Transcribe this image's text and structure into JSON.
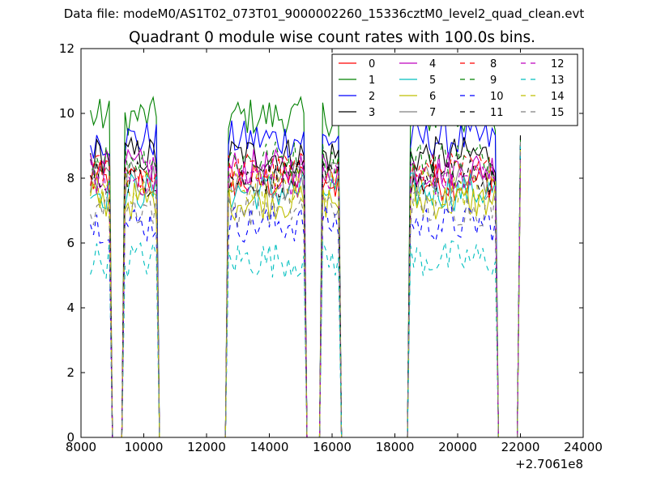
{
  "chart_data": {
    "type": "line",
    "suptitle": "Data file: modeM0/AS1T02_073T01_9000002260_15336cztM0_level2_quad_clean.evt",
    "title": "Quadrant 0 module wise count rates with 100.0s bins.",
    "xlabel": "",
    "ylabel": "",
    "x_offset_label": "+2.7061e8",
    "xlim": [
      8000,
      24000
    ],
    "ylim": [
      0,
      12
    ],
    "x_ticks": [
      "8000",
      "10000",
      "12000",
      "14000",
      "16000",
      "18000",
      "20000",
      "22000",
      "24000"
    ],
    "y_ticks": [
      "0",
      "2",
      "4",
      "6",
      "8",
      "10",
      "12"
    ],
    "grid": false,
    "legend_position": "top-right",
    "legend_columns": 4,
    "colors": [
      "#ff0000",
      "#008000",
      "#0000ff",
      "#000000",
      "#bf00bf",
      "#00bfbf",
      "#bfbf00",
      "#808080",
      "#ff0000",
      "#008000",
      "#0000ff",
      "#000000",
      "#bf00bf",
      "#00bfbf",
      "#bfbf00",
      "#808080"
    ],
    "series": [
      {
        "name": "0",
        "style": "solid",
        "level": 7.9
      },
      {
        "name": "1",
        "style": "solid",
        "level": 9.9
      },
      {
        "name": "2",
        "style": "solid",
        "level": 9.2
      },
      {
        "name": "3",
        "style": "solid",
        "level": 8.7
      },
      {
        "name": "4",
        "style": "solid",
        "level": 8.3
      },
      {
        "name": "5",
        "style": "solid",
        "level": 7.6
      },
      {
        "name": "6",
        "style": "solid",
        "level": 7.3
      },
      {
        "name": "7",
        "style": "solid",
        "level": 7.9
      },
      {
        "name": "8",
        "style": "dashed",
        "level": 8.2
      },
      {
        "name": "9",
        "style": "dashed",
        "level": 8.6
      },
      {
        "name": "10",
        "style": "dashed",
        "level": 6.6
      },
      {
        "name": "11",
        "style": "dashed",
        "level": 8.0
      },
      {
        "name": "12",
        "style": "dashed",
        "level": 8.0
      },
      {
        "name": "13",
        "style": "dashed",
        "level": 5.5
      },
      {
        "name": "14",
        "style": "dashed",
        "level": 7.7
      },
      {
        "name": "15",
        "style": "dashed",
        "level": 7.1
      }
    ],
    "bin_size_s": 100,
    "active_intervals": [
      [
        8300,
        8900
      ],
      [
        9400,
        10400
      ],
      [
        12700,
        15100
      ],
      [
        15650,
        16200
      ],
      [
        18450,
        21200
      ]
    ],
    "end_spike": {
      "x": 22000,
      "ymin": 8.2,
      "ymax": 9.4
    }
  }
}
